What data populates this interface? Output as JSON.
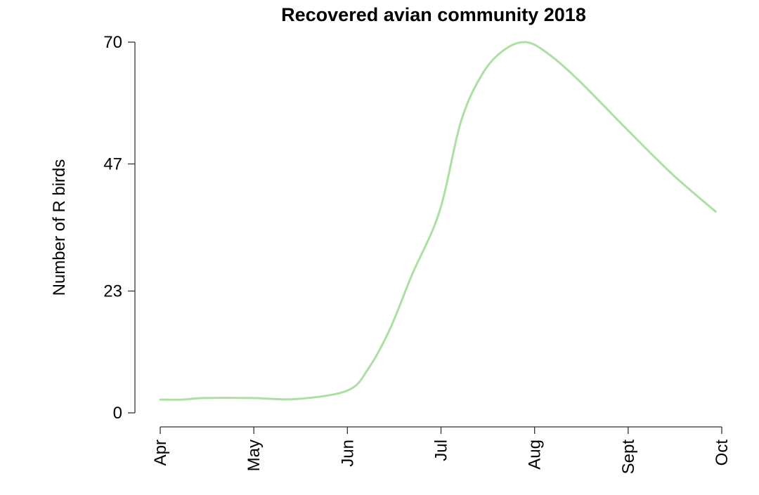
{
  "chart_data": {
    "type": "line",
    "title": "Recovered avian community 2018",
    "xlabel": "",
    "ylabel": "Number of R birds",
    "x_ticks": [
      "Apr",
      "May",
      "Jun",
      "Jul",
      "Aug",
      "Sept",
      "Oct"
    ],
    "y_ticks": [
      "0",
      "23",
      "47",
      "70"
    ],
    "ylim": [
      0,
      70
    ],
    "xlim": [
      "2018-04-01",
      "2018-10-01"
    ],
    "grid": false,
    "legend": "none",
    "series": [
      {
        "color": "#addfa4",
        "x": [
          "2018-04-01",
          "2018-04-08",
          "2018-04-15",
          "2018-05-01",
          "2018-05-15",
          "2018-06-01",
          "2018-06-08",
          "2018-06-15",
          "2018-06-22",
          "2018-07-01",
          "2018-07-08",
          "2018-07-15",
          "2018-07-22",
          "2018-07-29",
          "2018-08-05",
          "2018-08-15",
          "2018-09-01",
          "2018-09-15",
          "2018-09-29"
        ],
        "y": [
          2.5,
          2.5,
          2.8,
          2.8,
          2.6,
          4.2,
          8.5,
          16,
          26,
          38,
          55,
          64,
          68.5,
          70,
          68,
          63,
          53,
          45,
          38
        ]
      }
    ]
  }
}
